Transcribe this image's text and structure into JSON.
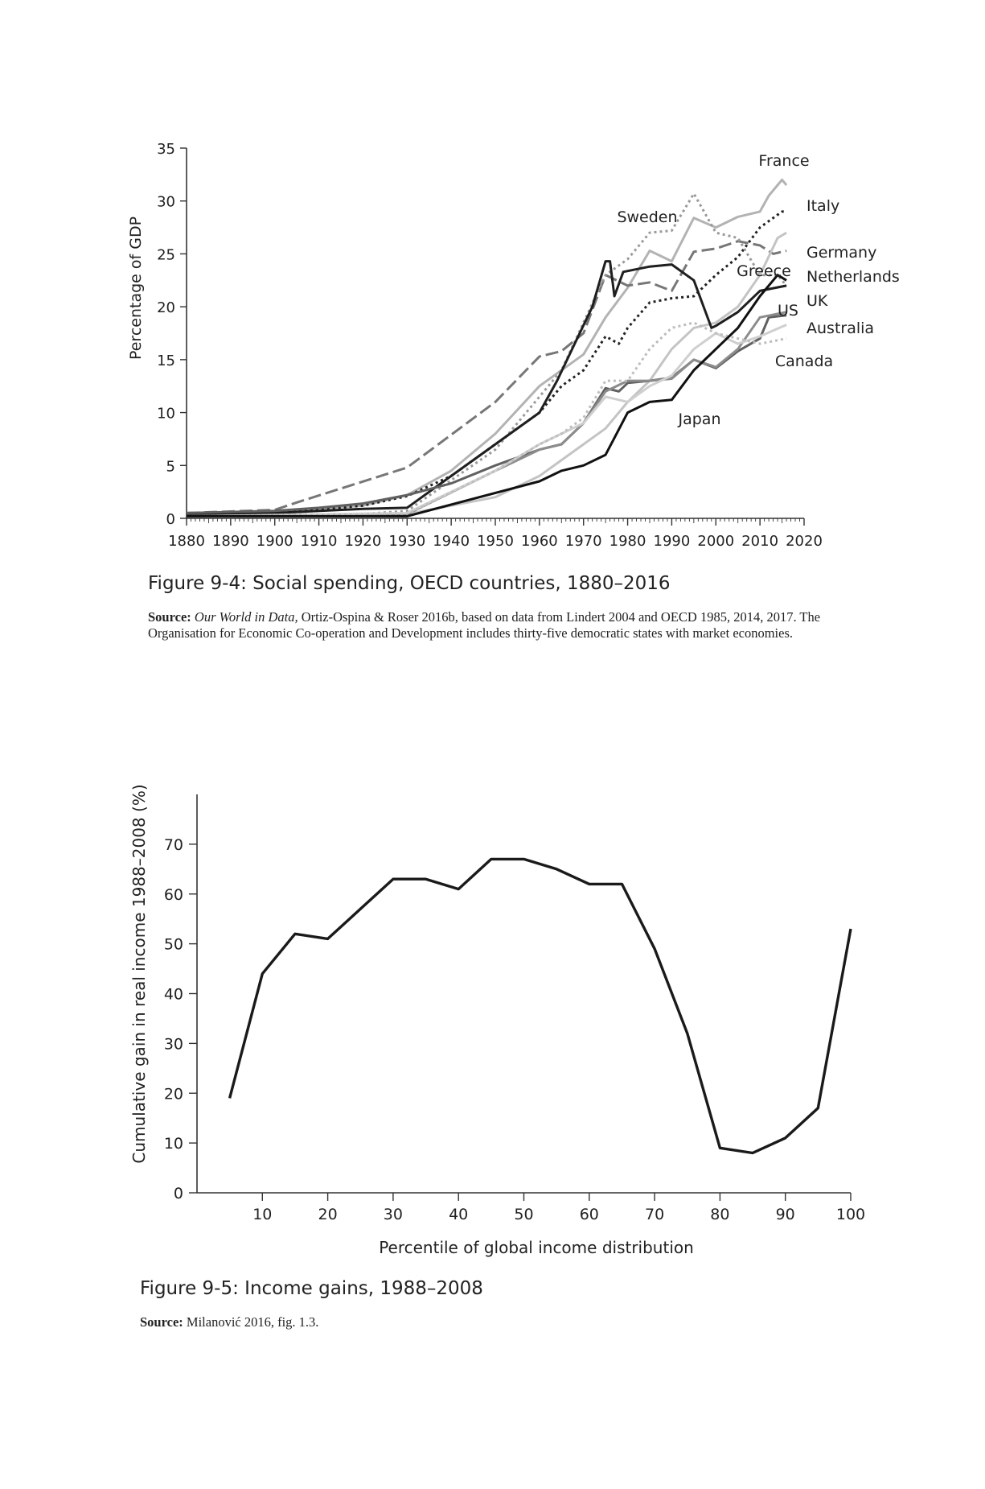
{
  "figures": [
    {
      "caption": "Figure 9-4: Social spending, OECD countries, 1880–2016",
      "source_label": "Source:",
      "source_italic": "Our World in Data,",
      "source_text": " Ortiz-Ospina & Roser 2016b, based on data from Lindert 2004 and OECD 1985, 2014, 2017. The Organisation for Economic Co-operation and Development includes thirty-five democratic states with market economies."
    },
    {
      "caption": "Figure 9-5: Income gains, 1988–2008",
      "source_label": "Source:",
      "source_text": " Milanović 2016, fig. 1.3."
    }
  ],
  "chart_data": [
    {
      "type": "line",
      "title": "",
      "xlabel": "",
      "ylabel": "Percentage of GDP",
      "xlim": [
        1880,
        2020
      ],
      "ylim": [
        0,
        35
      ],
      "xticks": [
        1880,
        1890,
        1900,
        1910,
        1920,
        1930,
        1940,
        1950,
        1960,
        1970,
        1980,
        1990,
        2000,
        2010,
        2020
      ],
      "yticks": [
        0,
        5,
        10,
        15,
        20,
        25,
        30,
        35
      ],
      "grid": false,
      "legend": "direct labels",
      "series": [
        {
          "name": "France",
          "color": "#b3b3b3",
          "dash": "solid",
          "points": [
            [
              1880,
              0.5
            ],
            [
              1900,
              0.6
            ],
            [
              1910,
              0.9
            ],
            [
              1920,
              1.2
            ],
            [
              1930,
              2.2
            ],
            [
              1940,
              4.5
            ],
            [
              1950,
              8
            ],
            [
              1960,
              12.5
            ],
            [
              1970,
              15.5
            ],
            [
              1975,
              19
            ],
            [
              1980,
              21.8
            ],
            [
              1985,
              25.3
            ],
            [
              1990,
              24.3
            ],
            [
              1995,
              28.4
            ],
            [
              2000,
              27.5
            ],
            [
              2005,
              28.5
            ],
            [
              2010,
              29
            ],
            [
              2012,
              30.5
            ],
            [
              2015,
              32
            ],
            [
              2016,
              31.5
            ]
          ]
        },
        {
          "name": "Italy",
          "color": "#222222",
          "dash": "dotted",
          "points": [
            [
              1880,
              0.4
            ],
            [
              1900,
              0.5
            ],
            [
              1910,
              0.8
            ],
            [
              1920,
              1.2
            ],
            [
              1930,
              2.1
            ],
            [
              1940,
              4
            ],
            [
              1950,
              7
            ],
            [
              1960,
              10
            ],
            [
              1965,
              12.5
            ],
            [
              1970,
              14
            ],
            [
              1975,
              17.2
            ],
            [
              1978,
              16.5
            ],
            [
              1980,
              18
            ],
            [
              1985,
              20.4
            ],
            [
              1990,
              20.8
            ],
            [
              1995,
              21
            ],
            [
              2000,
              23
            ],
            [
              2005,
              24.7
            ],
            [
              2010,
              27.5
            ],
            [
              2015,
              29
            ],
            [
              2016,
              29
            ]
          ]
        },
        {
          "name": "Germany",
          "color": "#777777",
          "dash": "dashed",
          "points": [
            [
              1880,
              0.5
            ],
            [
              1900,
              0.8
            ],
            [
              1905,
              1.5
            ],
            [
              1930,
              4.8
            ],
            [
              1950,
              11
            ],
            [
              1960,
              15.3
            ],
            [
              1965,
              15.8
            ],
            [
              1970,
              17.5
            ],
            [
              1975,
              23
            ],
            [
              1980,
              22
            ],
            [
              1985,
              22.3
            ],
            [
              1990,
              21.5
            ],
            [
              1995,
              25.2
            ],
            [
              2000,
              25.5
            ],
            [
              2005,
              26.2
            ],
            [
              2010,
              25.8
            ],
            [
              2013,
              25
            ],
            [
              2016,
              25.3
            ]
          ]
        },
        {
          "name": "Netherlands",
          "color": "#9a9a9a",
          "dash": "dotted",
          "points": [
            [
              1880,
              0.3
            ],
            [
              1920,
              0.4
            ],
            [
              1930,
              0.7
            ],
            [
              1950,
              6.5
            ],
            [
              1960,
              11.5
            ],
            [
              1965,
              14
            ],
            [
              1970,
              18.5
            ],
            [
              1975,
              23
            ],
            [
              1980,
              24.5
            ],
            [
              1985,
              27
            ],
            [
              1990,
              27.2
            ],
            [
              1995,
              30.7
            ],
            [
              2000,
              27
            ],
            [
              2005,
              26.5
            ],
            [
              2010,
              23
            ],
            [
              2014,
              23
            ],
            [
              2016,
              22
            ]
          ]
        },
        {
          "name": "Greece",
          "color": "#c4c4c4",
          "dash": "solid",
          "points": [
            [
              1880,
              0.3
            ],
            [
              1930,
              0.4
            ],
            [
              1950,
              2
            ],
            [
              1960,
              4
            ],
            [
              1970,
              7
            ],
            [
              1975,
              8.5
            ],
            [
              1980,
              11
            ],
            [
              1985,
              13
            ],
            [
              1990,
              16
            ],
            [
              1995,
              18
            ],
            [
              2000,
              18.5
            ],
            [
              2005,
              20
            ],
            [
              2010,
              23
            ],
            [
              2014,
              26.5
            ],
            [
              2016,
              27
            ]
          ]
        },
        {
          "name": "Sweden",
          "color": "#1f1f1f",
          "dash": "solid",
          "points": [
            [
              1880,
              0.3
            ],
            [
              1900,
              0.5
            ],
            [
              1920,
              0.9
            ],
            [
              1930,
              1
            ],
            [
              1940,
              4
            ],
            [
              1950,
              7
            ],
            [
              1960,
              10
            ],
            [
              1964,
              13
            ],
            [
              1968,
              16.5
            ],
            [
              1972,
              20
            ],
            [
              1975,
              24.3
            ],
            [
              1976,
              24.3
            ],
            [
              1977,
              21
            ],
            [
              1979,
              23.3
            ],
            [
              1985,
              23.8
            ],
            [
              1990,
              24
            ],
            [
              1995,
              22.5
            ],
            [
              1999,
              18
            ],
            [
              2000,
              18.2
            ],
            [
              2005,
              19.5
            ],
            [
              2010,
              21.5
            ],
            [
              2016,
              22
            ]
          ]
        },
        {
          "name": "UK",
          "color": "#606060",
          "dash": "solid",
          "points": [
            [
              1880,
              0.5
            ],
            [
              1900,
              0.7
            ],
            [
              1910,
              1
            ],
            [
              1920,
              1.4
            ],
            [
              1930,
              2.2
            ],
            [
              1940,
              3.3
            ],
            [
              1950,
              5
            ],
            [
              1960,
              6.5
            ],
            [
              1965,
              7
            ],
            [
              1970,
              9
            ],
            [
              1975,
              12.3
            ],
            [
              1978,
              12
            ],
            [
              1980,
              12.8
            ],
            [
              1985,
              13
            ],
            [
              1990,
              13.3
            ],
            [
              1995,
              15
            ],
            [
              2000,
              14.2
            ],
            [
              2005,
              15.8
            ],
            [
              2010,
              17
            ],
            [
              2012,
              19
            ],
            [
              2016,
              19.2
            ]
          ]
        },
        {
          "name": "US",
          "color": "#8c8c8c",
          "dash": "solid",
          "points": [
            [
              1880,
              0.2
            ],
            [
              1930,
              0.4
            ],
            [
              1950,
              4.5
            ],
            [
              1960,
              6.5
            ],
            [
              1965,
              7
            ],
            [
              1970,
              9
            ],
            [
              1975,
              12
            ],
            [
              1980,
              13
            ],
            [
              1985,
              13
            ],
            [
              1990,
              13.2
            ],
            [
              1995,
              15
            ],
            [
              2000,
              14.3
            ],
            [
              2005,
              16
            ],
            [
              2010,
              19
            ],
            [
              2016,
              19.5
            ]
          ]
        },
        {
          "name": "Australia",
          "color": "#cfcfcf",
          "dash": "solid",
          "points": [
            [
              1880,
              0.2
            ],
            [
              1930,
              0.5
            ],
            [
              1950,
              4.5
            ],
            [
              1960,
              7
            ],
            [
              1965,
              8
            ],
            [
              1970,
              9
            ],
            [
              1975,
              11.5
            ],
            [
              1980,
              11
            ],
            [
              1985,
              12.5
            ],
            [
              1990,
              13.5
            ],
            [
              1995,
              16
            ],
            [
              2000,
              17.5
            ],
            [
              2005,
              16.5
            ],
            [
              2010,
              17.2
            ],
            [
              2016,
              18.3
            ]
          ]
        },
        {
          "name": "Canada",
          "color": "#bdbdbd",
          "dash": "dotted",
          "points": [
            [
              1880,
              0.2
            ],
            [
              1930,
              0.4
            ],
            [
              1950,
              4.5
            ],
            [
              1960,
              7
            ],
            [
              1965,
              8
            ],
            [
              1970,
              9.5
            ],
            [
              1975,
              13
            ],
            [
              1980,
              13
            ],
            [
              1985,
              16
            ],
            [
              1990,
              18
            ],
            [
              1995,
              18.5
            ],
            [
              2000,
              17.5
            ],
            [
              2005,
              17
            ],
            [
              2010,
              16.5
            ],
            [
              2016,
              17
            ]
          ]
        },
        {
          "name": "Japan",
          "color": "#111111",
          "dash": "solid",
          "points": [
            [
              1880,
              0.2
            ],
            [
              1930,
              0.2
            ],
            [
              1960,
              3.5
            ],
            [
              1965,
              4.5
            ],
            [
              1970,
              5
            ],
            [
              1975,
              6
            ],
            [
              1980,
              10
            ],
            [
              1985,
              11
            ],
            [
              1990,
              11.2
            ],
            [
              1995,
              14
            ],
            [
              2000,
              16
            ],
            [
              2005,
              18
            ],
            [
              2010,
              21
            ],
            [
              2014,
              23
            ],
            [
              2016,
              22.5
            ]
          ]
        }
      ],
      "labels": {
        "France": "France",
        "Italy": "Italy",
        "Sweden": "Sweden",
        "Germany": "Germany",
        "Greece": "Greece",
        "Netherlands": "Netherlands",
        "UK": "UK",
        "US": "US",
        "Australia": "Australia",
        "Canada": "Canada",
        "Japan": "Japan"
      }
    },
    {
      "type": "line",
      "title": "",
      "xlabel": "Percentile of global income distribution",
      "ylabel": "Cumulative gain in real income 1988–2008 (%)",
      "xlim": [
        0,
        100
      ],
      "ylim": [
        0,
        80
      ],
      "xticks": [
        10,
        20,
        30,
        40,
        50,
        60,
        70,
        80,
        90,
        100
      ],
      "yticks": [
        0,
        10,
        20,
        30,
        40,
        50,
        60,
        70
      ],
      "grid": false,
      "series": [
        {
          "color": "#1a1a1a",
          "points": [
            [
              5,
              19
            ],
            [
              10,
              44
            ],
            [
              15,
              52
            ],
            [
              20,
              51
            ],
            [
              25,
              57
            ],
            [
              30,
              63
            ],
            [
              35,
              63
            ],
            [
              40,
              61
            ],
            [
              45,
              67
            ],
            [
              50,
              67
            ],
            [
              55,
              65
            ],
            [
              60,
              62
            ],
            [
              65,
              62
            ],
            [
              70,
              49
            ],
            [
              75,
              32
            ],
            [
              80,
              9
            ],
            [
              85,
              8
            ],
            [
              90,
              11
            ],
            [
              95,
              17
            ],
            [
              100,
              53
            ]
          ]
        }
      ]
    }
  ]
}
